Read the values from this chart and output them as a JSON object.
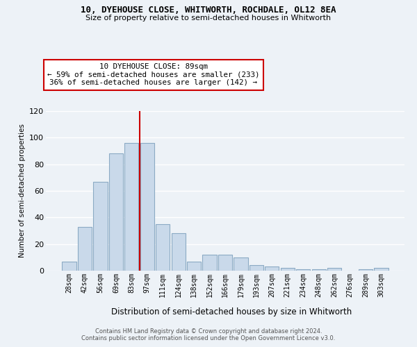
{
  "title1": "10, DYEHOUSE CLOSE, WHITWORTH, ROCHDALE, OL12 8EA",
  "title2": "Size of property relative to semi-detached houses in Whitworth",
  "xlabel": "Distribution of semi-detached houses by size in Whitworth",
  "ylabel": "Number of semi-detached properties",
  "categories": [
    "28sqm",
    "42sqm",
    "56sqm",
    "69sqm",
    "83sqm",
    "97sqm",
    "111sqm",
    "124sqm",
    "138sqm",
    "152sqm",
    "166sqm",
    "179sqm",
    "193sqm",
    "207sqm",
    "221sqm",
    "234sqm",
    "248sqm",
    "262sqm",
    "276sqm",
    "289sqm",
    "303sqm"
  ],
  "values": [
    7,
    33,
    67,
    88,
    96,
    96,
    35,
    28,
    7,
    12,
    12,
    10,
    4,
    3,
    2,
    1,
    1,
    2,
    0,
    1,
    2
  ],
  "bar_color": "#c9d9ea",
  "bar_edge_color": "#8baac4",
  "vline_color": "#cc0000",
  "vline_position": 4.5,
  "annotation_line1": "10 DYEHOUSE CLOSE: 89sqm",
  "annotation_line2": "← 59% of semi-detached houses are smaller (233)",
  "annotation_line3": "36% of semi-detached houses are larger (142) →",
  "annotation_box_face": "#ffffff",
  "annotation_box_edge": "#cc0000",
  "ylim": [
    0,
    120
  ],
  "yticks": [
    0,
    20,
    40,
    60,
    80,
    100,
    120
  ],
  "bg_color": "#edf2f7",
  "grid_color": "#ffffff",
  "footer1": "Contains HM Land Registry data © Crown copyright and database right 2024.",
  "footer2": "Contains public sector information licensed under the Open Government Licence v3.0."
}
